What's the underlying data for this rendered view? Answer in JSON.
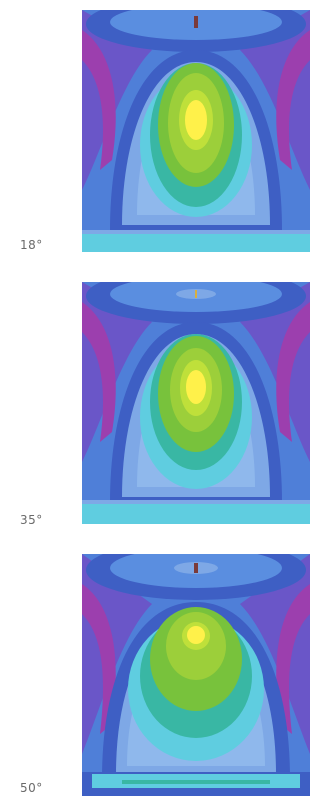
{
  "panels": [
    {
      "angle_label": "18°"
    },
    {
      "angle_label": "35°"
    },
    {
      "angle_label": "50°"
    }
  ],
  "colors": {
    "background_blue": "#4f7fd8",
    "deep_blue": "#3e5fc4",
    "magenta": "#9c3fae",
    "light_blue": "#7ea8e6",
    "cyan": "#5fcde0",
    "teal": "#39b7a4",
    "green": "#78c23c",
    "lime": "#bfe03a",
    "yellow": "#fff14a"
  }
}
